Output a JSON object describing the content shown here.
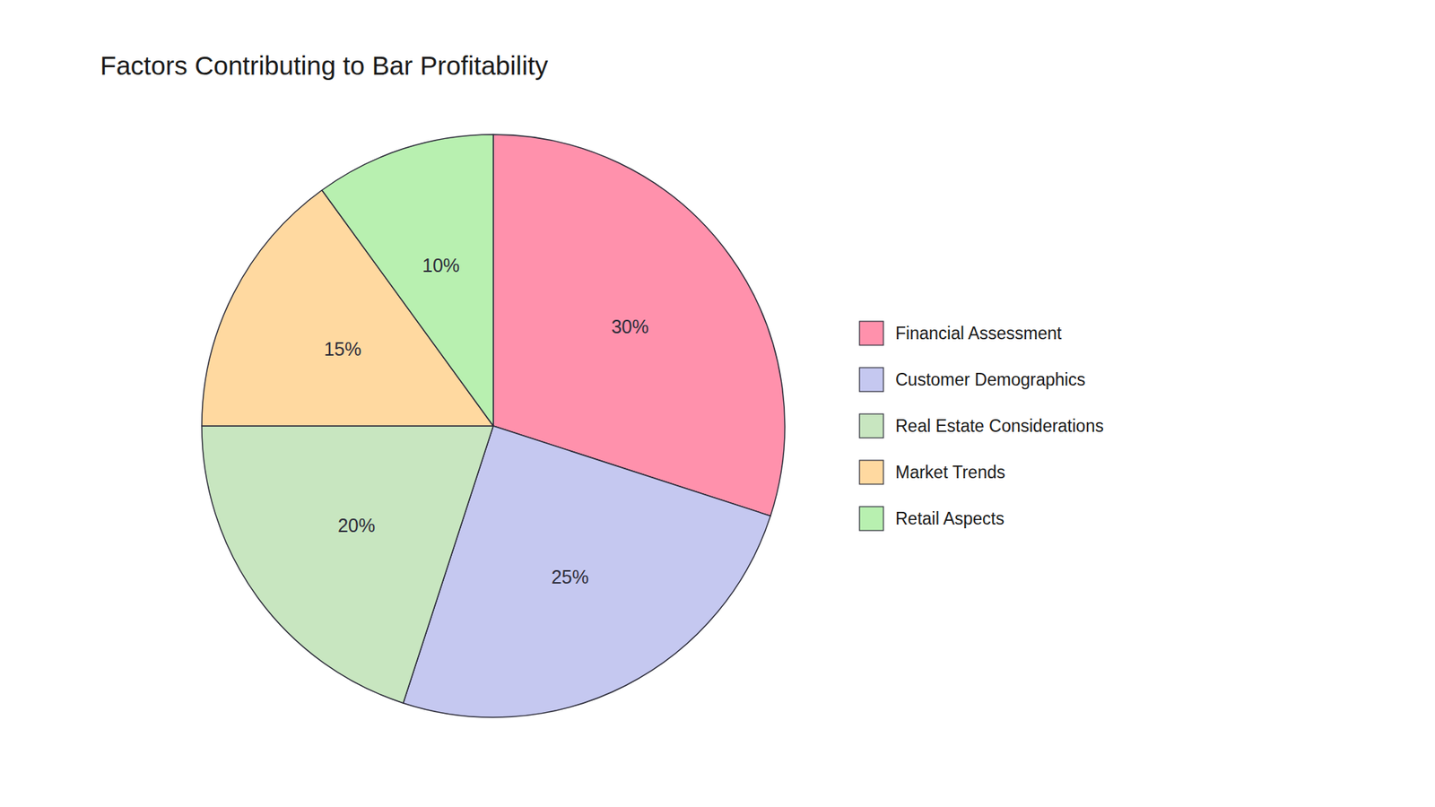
{
  "chart_data": {
    "type": "pie",
    "title": "Factors Contributing to Bar Profitability",
    "categories": [
      "Financial Assessment",
      "Customer Demographics",
      "Real Estate Considerations",
      "Market Trends",
      "Retail Aspects"
    ],
    "values": [
      30,
      25,
      20,
      15,
      10
    ],
    "value_labels": [
      "30%",
      "25%",
      "20%",
      "15%",
      "10%"
    ],
    "colors": [
      "#FF91AC",
      "#C5C8F0",
      "#C8E6C0",
      "#FFD9A0",
      "#B8F0B0"
    ],
    "data_labels": true,
    "legend": "right"
  }
}
